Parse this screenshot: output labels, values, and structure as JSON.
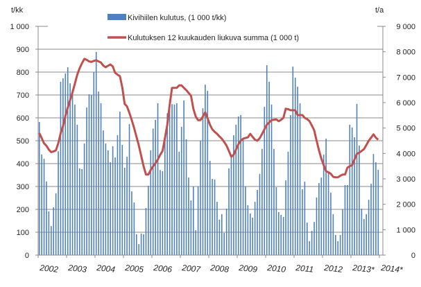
{
  "chart_data": {
    "type": "bar+line",
    "left_axis": {
      "label": "t/kk",
      "ylim": [
        0,
        1000
      ],
      "ticks": [
        "0",
        "100",
        "200",
        "300",
        "400",
        "500",
        "600",
        "700",
        "800",
        "900",
        "1 000"
      ]
    },
    "right_axis": {
      "label": "t/a",
      "ylim": [
        0,
        9000
      ],
      "ticks": [
        "0",
        "1 000",
        "2 000",
        "3 000",
        "4 000",
        "5 000",
        "6 000",
        "7 000",
        "8 000",
        "9 000"
      ]
    },
    "x_tick_labels": [
      "2002",
      "2003",
      "2004",
      "2005",
      "2006",
      "2007",
      "2008",
      "2009",
      "2010",
      "2011",
      "2012",
      "2013*",
      "2014*"
    ],
    "grid": true,
    "legend_position": "top",
    "series": [
      {
        "name": "Kivihiilen kulutus, (1 000 t/kk)",
        "type": "bar",
        "axis": "left",
        "color": "#4F81BD",
        "values": [
          582,
          440,
          421,
          322,
          191,
          127,
          209,
          270,
          454,
          758,
          773,
          794,
          821,
          751,
          724,
          658,
          570,
          379,
          376,
          488,
          645,
          703,
          700,
          800,
          888,
          715,
          664,
          545,
          488,
          458,
          406,
          476,
          427,
          524,
          627,
          482,
          382,
          430,
          573,
          279,
          230,
          91,
          48,
          94,
          91,
          206,
          303,
          458,
          553,
          591,
          664,
          372,
          367,
          500,
          620,
          679,
          660,
          658,
          664,
          452,
          561,
          676,
          506,
          339,
          239,
          300,
          109,
          300,
          500,
          642,
          745,
          718,
          412,
          333,
          330,
          233,
          155,
          179,
          97,
          203,
          379,
          436,
          524,
          570,
          606,
          612,
          509,
          300,
          218,
          182,
          164,
          233,
          285,
          355,
          464,
          648,
          830,
          758,
          658,
          464,
          297,
          188,
          176,
          167,
          327,
          452,
          612,
          824,
          776,
          736,
          664,
          288,
          321,
          142,
          61,
          106,
          145,
          252,
          315,
          339,
          439,
          509,
          361,
          273,
          179,
          88,
          61,
          88,
          200,
          306,
          306,
          570,
          558,
          515,
          661,
          479,
          203,
          158,
          179,
          242,
          312,
          442,
          406,
          373
        ]
      },
      {
        "name": "Kulutuksen 12 kuukauden liukuva summa (1 000 t)",
        "type": "line",
        "axis": "right",
        "color": "#C0504D",
        "values": [
          4800,
          4600,
          4400,
          4300,
          4150,
          4050,
          4080,
          4120,
          4400,
          4800,
          5080,
          5480,
          5800,
          6100,
          6400,
          6750,
          7100,
          7350,
          7550,
          7720,
          7680,
          7620,
          7600,
          7640,
          7670,
          7620,
          7580,
          7450,
          7390,
          7450,
          7500,
          7420,
          7170,
          7100,
          7040,
          6600,
          5950,
          5850,
          5600,
          5310,
          5000,
          4650,
          4310,
          3900,
          3500,
          3170,
          3170,
          3350,
          3490,
          3620,
          3760,
          3950,
          4100,
          4600,
          5130,
          5900,
          6580,
          6580,
          6580,
          6680,
          6680,
          6580,
          6490,
          6380,
          6270,
          5760,
          5450,
          5310,
          5310,
          5450,
          5620,
          5380,
          5130,
          4950,
          4850,
          4770,
          4670,
          4580,
          4450,
          4310,
          4100,
          3870,
          3950,
          4150,
          4360,
          4500,
          4580,
          4610,
          4630,
          4770,
          4650,
          4540,
          4500,
          4600,
          4770,
          4950,
          5130,
          5220,
          5310,
          5330,
          5340,
          5270,
          5320,
          5400,
          5760,
          5740,
          5700,
          5700,
          5700,
          5510,
          5510,
          5510,
          5400,
          5350,
          5270,
          5100,
          4910,
          4500,
          4120,
          3800,
          3540,
          3300,
          3260,
          3200,
          3080,
          3060,
          3060,
          3120,
          3170,
          3170,
          3440,
          3500,
          3540,
          3760,
          3980,
          4030,
          4100,
          4170,
          4330,
          4500,
          4620,
          4750,
          4620,
          4540
        ]
      }
    ]
  }
}
